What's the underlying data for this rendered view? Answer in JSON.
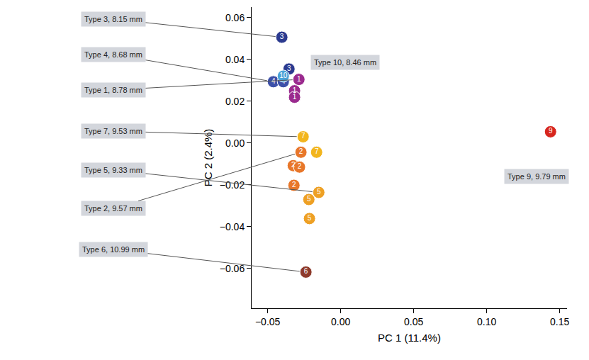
{
  "chart_data": {
    "type": "scatter",
    "x_label": "PC 1 (11.4%)",
    "y_label": "PC 2 (2.4%)",
    "xlim": [
      -0.061,
      0.155
    ],
    "ylim": [
      -0.079,
      0.065
    ],
    "xticks": [
      {
        "value": -0.05,
        "label": "−0.05"
      },
      {
        "value": 0,
        "label": "0.00"
      },
      0.05,
      {
        "value": 0.1,
        "label": "0.10"
      },
      0.15
    ],
    "yticks": [
      0.06,
      0.04,
      0.02,
      {
        "value": 0,
        "label": "0.00"
      },
      {
        "value": -0.02,
        "label": "−0.02"
      },
      {
        "value": -0.04,
        "label": "−0.04"
      },
      {
        "value": -0.06,
        "label": "−0.06"
      }
    ],
    "grid": false,
    "marker": "circle",
    "series": [
      {
        "name": "3",
        "label": "Type 3, 8.15 mm",
        "color": "#2b3a8f",
        "x": [
          -0.0403,
          -0.0354
        ],
        "y": [
          0.0506,
          0.0354
        ]
      },
      {
        "name": "4",
        "label": "Type 4, 8.68 mm",
        "color": "#3d50a8",
        "x": [
          -0.0461,
          -0.0393
        ],
        "y": [
          0.0293,
          0.0293
        ]
      },
      {
        "name": "1",
        "label": "Type 1, 8.78 mm",
        "color": "#9a2a8e",
        "x": [
          -0.0286,
          -0.0316,
          -0.0316
        ],
        "y": [
          0.0304,
          0.025,
          0.0219
        ]
      },
      {
        "name": "7",
        "label": "Type 7, 9.53 mm",
        "color": "#f2b51e",
        "x": [
          -0.0257,
          -0.0165
        ],
        "y": [
          0.003,
          -0.0044
        ]
      },
      {
        "name": "5",
        "label": "Type 5, 9.33 mm",
        "color": "#eea024",
        "x": [
          -0.015,
          -0.0218,
          -0.0214
        ],
        "y": [
          -0.0236,
          -0.027,
          -0.0361
        ]
      },
      {
        "name": "2",
        "label": "Type 2, 9.57 mm",
        "color": "#e8772a",
        "x": [
          -0.0272,
          -0.0325,
          -0.0282,
          -0.032
        ],
        "y": [
          -0.0044,
          -0.0108,
          -0.0115,
          -0.0202
        ]
      },
      {
        "name": "6",
        "label": "Type 6, 10.99 mm",
        "color": "#8e3b2c",
        "x": [
          -0.0238
        ],
        "y": [
          -0.0617
        ]
      },
      {
        "name": "10",
        "label": "Type 10, 8.46 mm",
        "color": "#4aa3d8",
        "x": [
          -0.0393
        ],
        "y": [
          0.032
        ]
      },
      {
        "name": "9",
        "label": "Type 9, 9.79 mm",
        "color": "#d7261e",
        "x": [
          0.1437
        ],
        "y": [
          0.0054
        ]
      }
    ]
  }
}
